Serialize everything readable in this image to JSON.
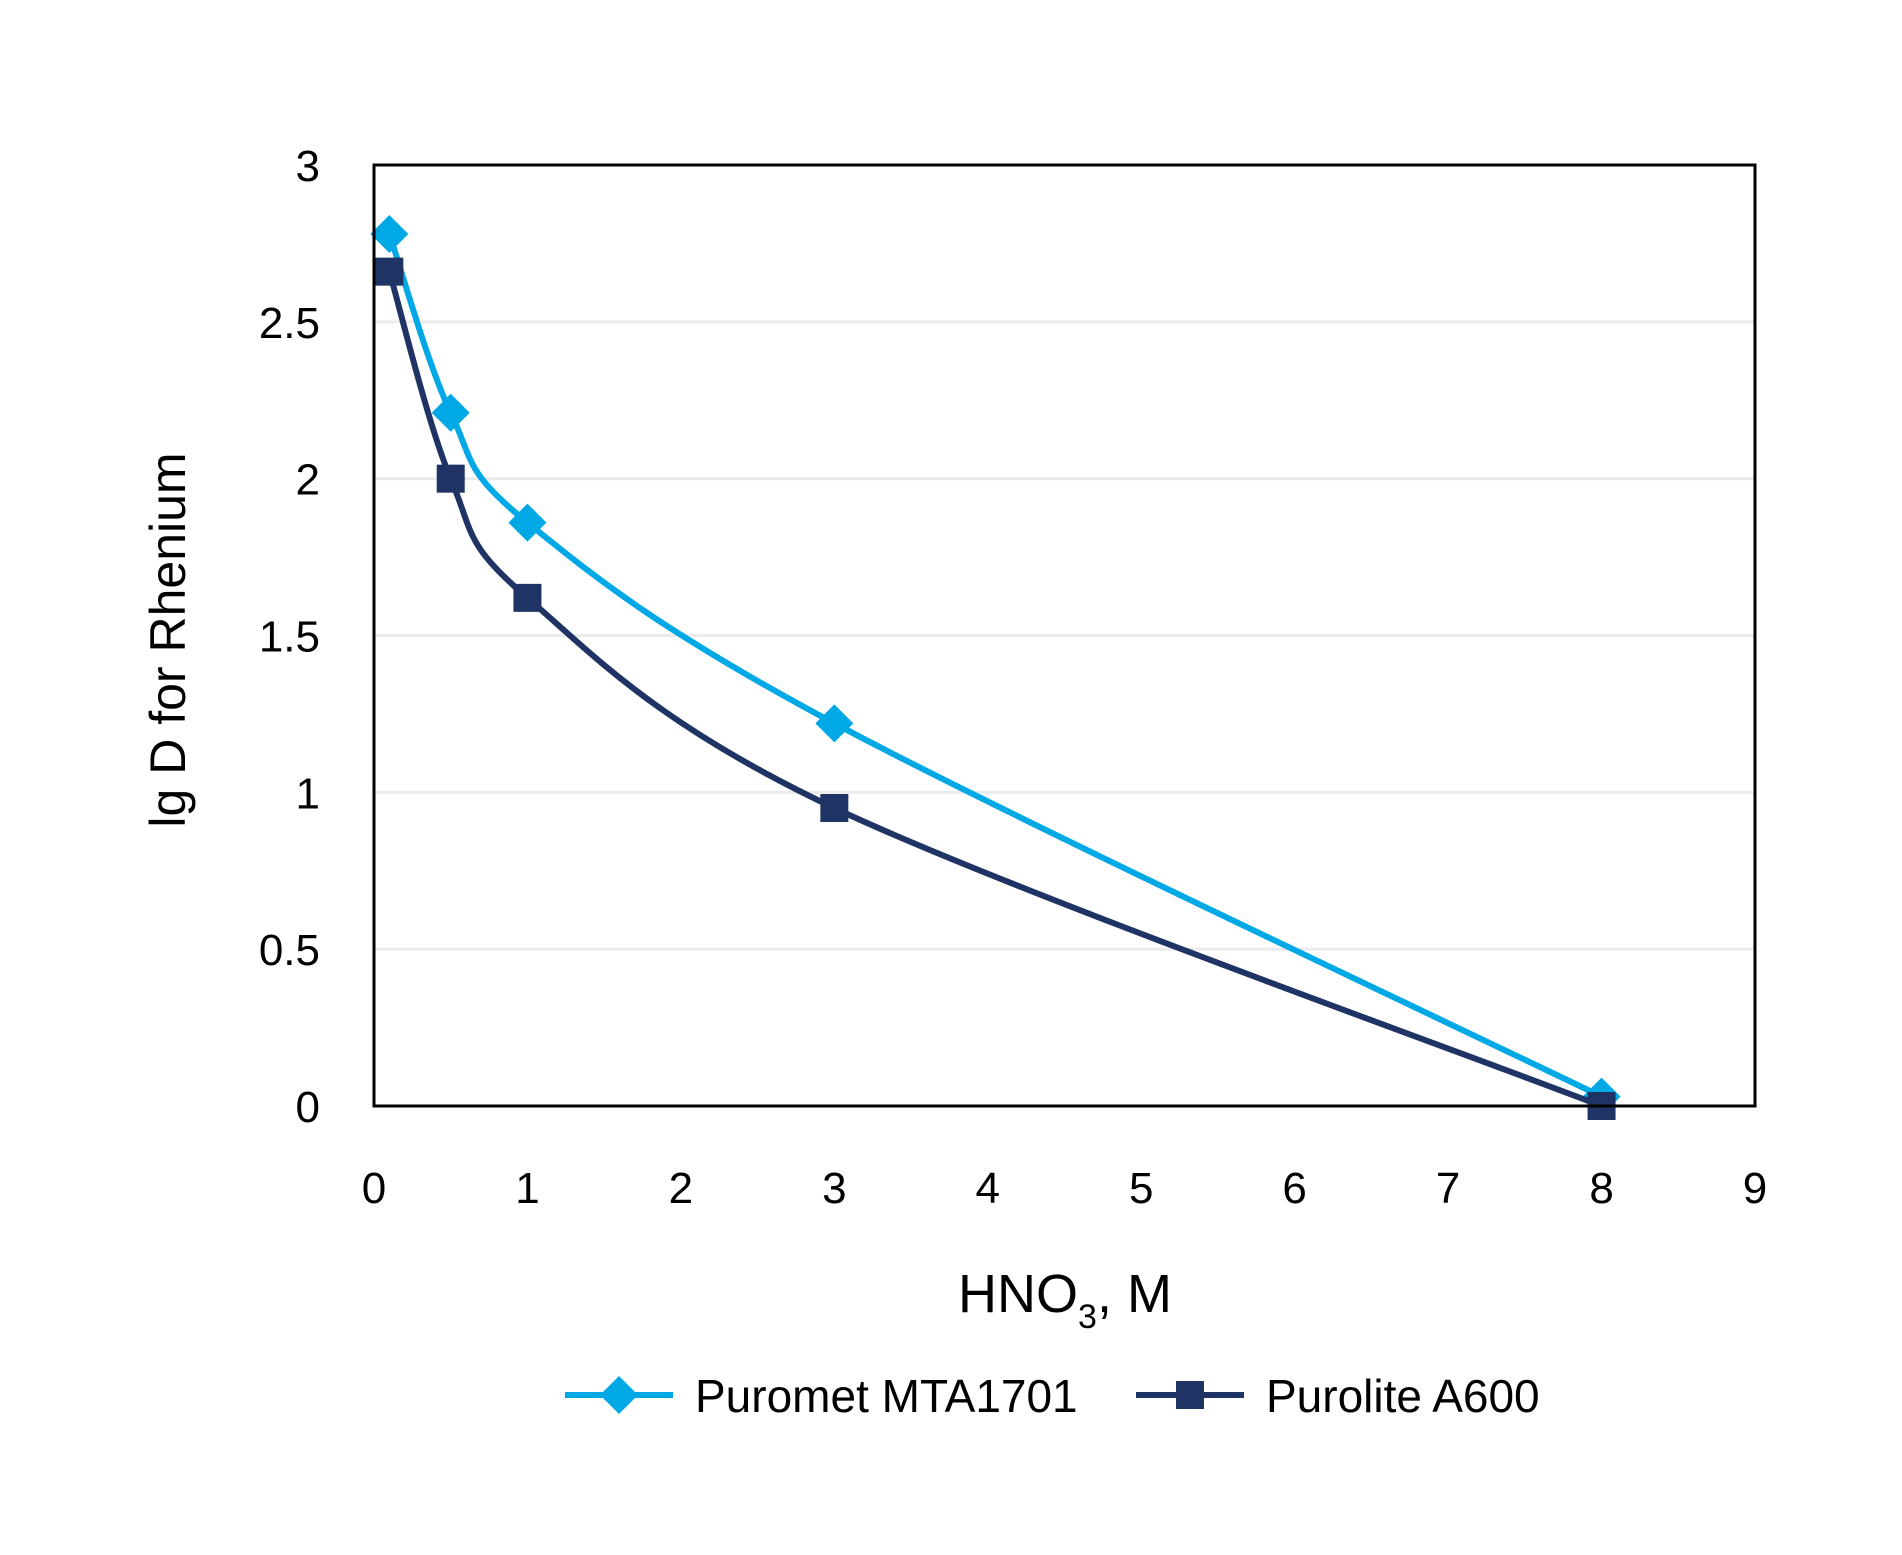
{
  "chart_data": {
    "type": "line",
    "title": "",
    "xlabel": "HNO",
    "xlabel_sub": "3",
    "xlabel_suffix": ", M",
    "ylabel": "lg D for Rhenium",
    "xlim": [
      0,
      9
    ],
    "ylim": [
      0,
      3
    ],
    "xticks": [
      "0",
      "1",
      "2",
      "3",
      "4",
      "5",
      "6",
      "7",
      "8",
      "9"
    ],
    "yticks": [
      "0",
      "0.5",
      "1",
      "1.5",
      "2",
      "2.5",
      "3"
    ],
    "grid": "horizontal",
    "smooth": true,
    "legend_position": "bottom",
    "series": [
      {
        "name": "Puromet MTA1701",
        "color": "#00a9e6",
        "marker": "diamond",
        "x": [
          0.1,
          0.5,
          1,
          3,
          8
        ],
        "y": [
          2.78,
          2.21,
          1.86,
          1.22,
          0.03
        ]
      },
      {
        "name": "Purolite A600",
        "color": "#1f3464",
        "marker": "square",
        "x": [
          0.1,
          0.5,
          1,
          3,
          8
        ],
        "y": [
          2.66,
          2.0,
          1.62,
          0.95,
          0.0
        ]
      }
    ]
  }
}
